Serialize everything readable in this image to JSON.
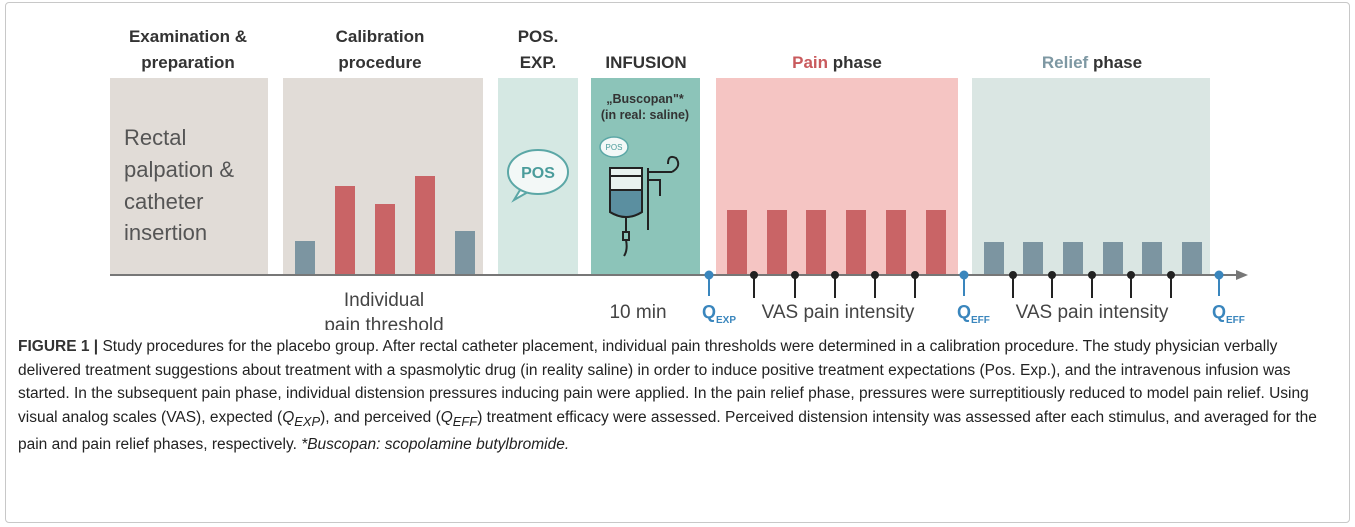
{
  "figure": {
    "headers": {
      "exam": [
        "Examination &",
        "preparation"
      ],
      "calibration": [
        "Calibration",
        "procedure"
      ],
      "pos_exp": [
        "POS.",
        "EXP."
      ],
      "infusion": "INFUSION",
      "pain": {
        "highlight": "Pain",
        "rest": "phase"
      },
      "relief": {
        "highlight": "Relief",
        "rest": "phase"
      }
    },
    "exam_text": [
      "Rectal",
      "palpation &",
      "catheter",
      "insertion"
    ],
    "pos_bubble": "POS",
    "infusion_text": [
      "„Buscopan\"*",
      "(in real: saline)"
    ],
    "infusion_bubble": "POS",
    "below": {
      "calibration": [
        "Individual",
        "pain threshold"
      ],
      "infusion": "10 min",
      "pain": "VAS pain intensity",
      "relief": "VAS pain intensity"
    },
    "q_labels": [
      {
        "letter": "Q",
        "sub": "EXP"
      },
      {
        "letter": "Q",
        "sub": "EFF"
      },
      {
        "letter": "Q",
        "sub": "EFF"
      }
    ]
  },
  "caption": {
    "label": "FIGURE 1 |",
    "part_a": " Study procedures for the placebo group. After rectal catheter placement, individual pain thresholds were determined in a calibration procedure. The study physician verbally delivered treatment suggestions about treatment with a spasmolytic drug (in reality saline) in order to induce positive treatment expectations (Pos. Exp.), and the intravenous infusion was started. In the subsequent pain phase, individual distension pressures inducing pain were applied. In the pain relief phase, pressures were surreptitiously reduced to model pain relief. Using visual analog scales (VAS), expected (",
    "q_exp": {
      "letter": "Q",
      "sub": "EXP"
    },
    "part_b": "), and perceived (",
    "q_eff": {
      "letter": "Q",
      "sub": "EFF"
    },
    "part_c": ") treatment efficacy were assessed. Perceived distension intensity was assessed after each stimulus, and averaged for the pain and pain relief phases, respectively. ",
    "footnote": "*Buscopan: scopolamine butylbromide."
  }
}
